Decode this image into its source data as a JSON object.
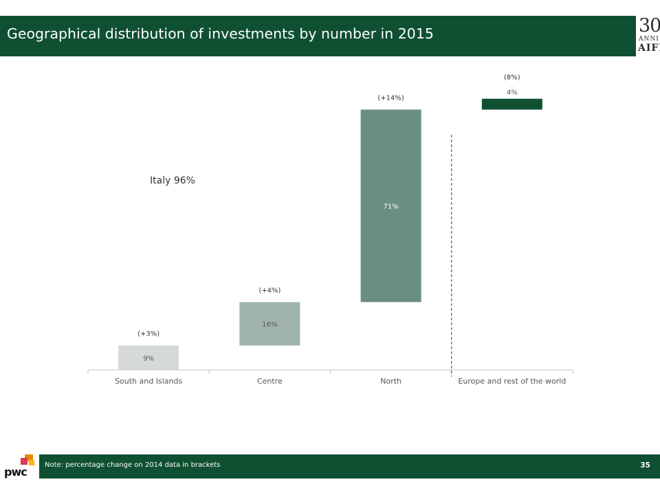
{
  "header": {
    "title": "Geographical distribution of investments by number in 2015"
  },
  "logo": {
    "number": "30",
    "sub": "ANNI",
    "name": "AIFI"
  },
  "chart_data": {
    "type": "bar",
    "subtype": "waterfall",
    "categories": [
      "South and Islands",
      "Centre",
      "North",
      "Europe and rest of the world"
    ],
    "values": [
      9,
      16,
      71,
      4
    ],
    "value_labels": [
      "9%",
      "16%",
      "71%",
      "4%"
    ],
    "change_labels": [
      "(+3%)",
      "(+4%)",
      "(+14%)",
      "(8%)"
    ],
    "colors": [
      "#d5d9d7",
      "#a0b3aa",
      "#6a8f81",
      "#0f5032"
    ],
    "annotation": "Italy 96%",
    "divider_after_category": "North",
    "divider_style": "dashed",
    "ylim": [
      0,
      100
    ],
    "xlabel": "",
    "ylabel": "",
    "grid": false,
    "legend": "none"
  },
  "footer": {
    "note": "Note: percentage change on 2014 data in brackets",
    "page": "35",
    "brand": "pwc"
  },
  "colors": {
    "brand_green": "#0f5032",
    "pwc_orange": "#e8870e",
    "pwc_red": "#d93954",
    "pwc_yellow": "#fdb913"
  }
}
